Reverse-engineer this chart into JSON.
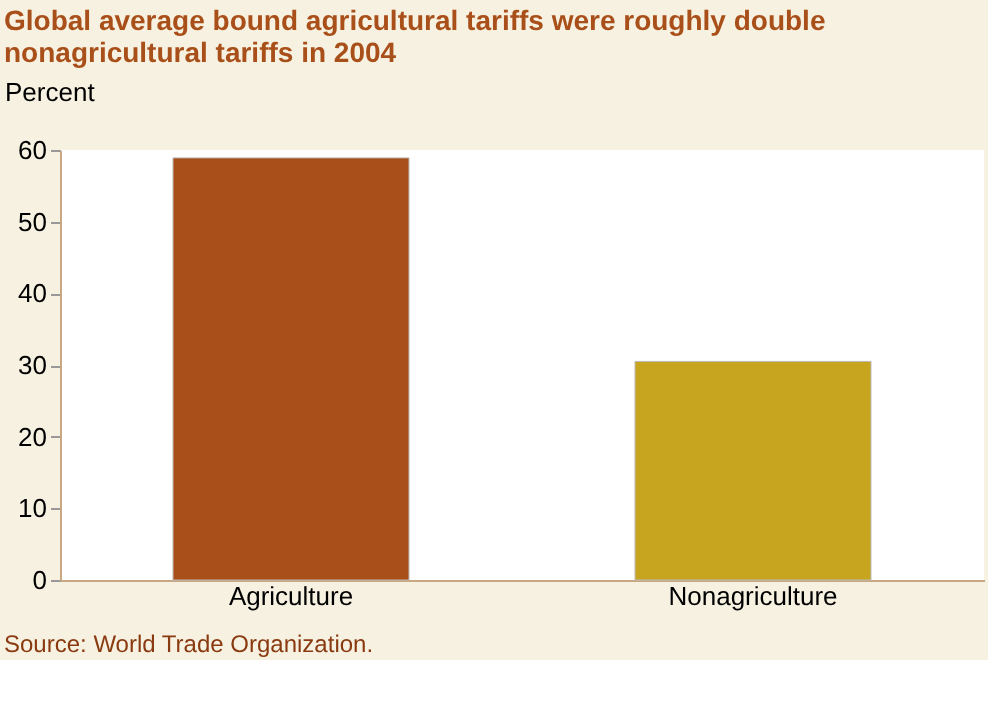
{
  "chart_data": {
    "type": "bar",
    "title": [
      "Global average bound agricultural tariffs were roughly double",
      "nonagricultural tariffs in 2004"
    ],
    "ylabel": "Percent",
    "categories": [
      "Agriculture",
      "Nonagriculture"
    ],
    "values": [
      58.9,
      30.5
    ],
    "colors": [
      "#a94f1a",
      "#c8a51f"
    ],
    "ylim": [
      0,
      60
    ],
    "yticks": [
      0,
      10,
      20,
      30,
      40,
      50,
      60
    ],
    "grid": false,
    "annotations": [
      "Source: World Trade Organization."
    ]
  }
}
